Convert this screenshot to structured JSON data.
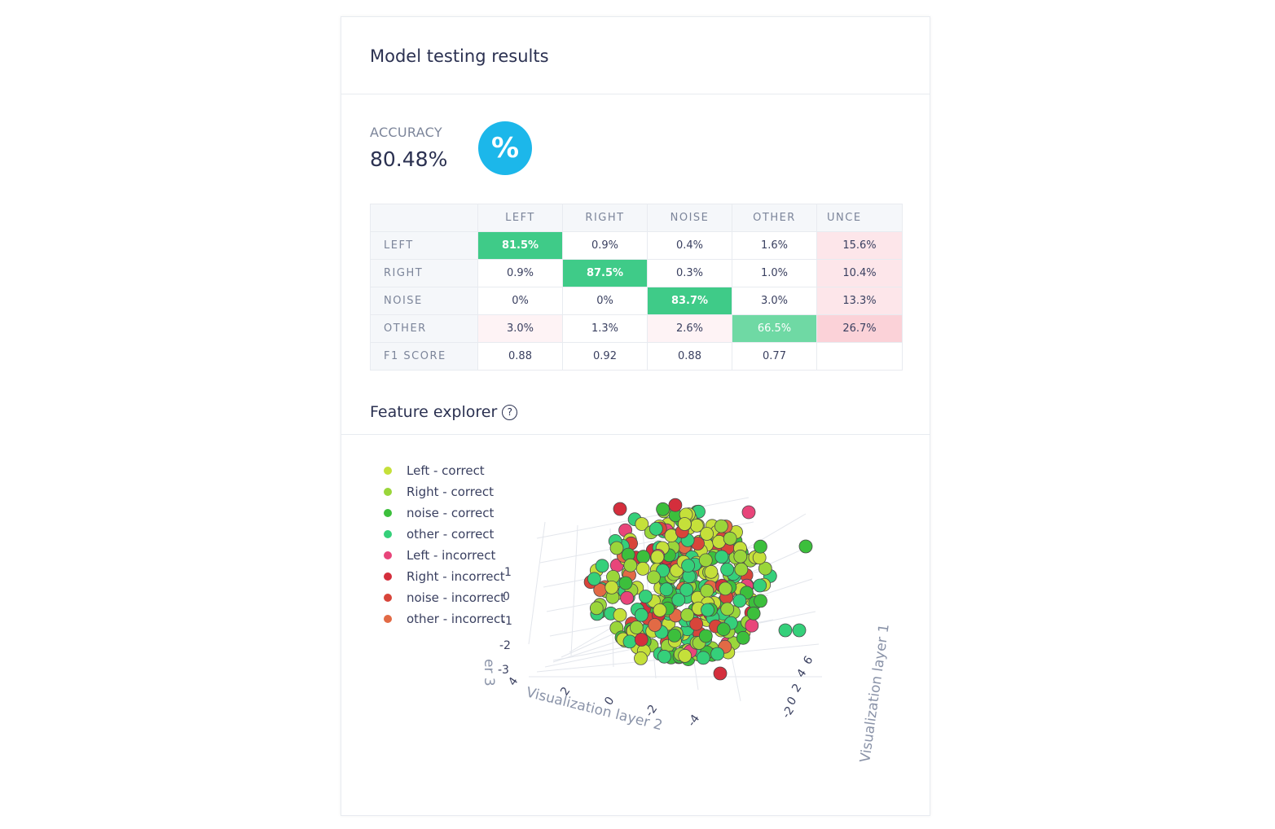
{
  "title": "Model testing results",
  "accuracy": {
    "label": "ACCURACY",
    "value": "80.48%",
    "icon": "percent-icon",
    "icon_glyph": "%"
  },
  "confusion_matrix": {
    "columns": [
      "LEFT",
      "RIGHT",
      "NOISE",
      "OTHER",
      "UNCE"
    ],
    "rows": [
      {
        "label": "LEFT",
        "cells": [
          "81.5%",
          "0.9%",
          "0.4%",
          "1.6%",
          "15.6%"
        ]
      },
      {
        "label": "RIGHT",
        "cells": [
          "0.9%",
          "87.5%",
          "0.3%",
          "1.0%",
          "10.4%"
        ]
      },
      {
        "label": "NOISE",
        "cells": [
          "0%",
          "0%",
          "83.7%",
          "3.0%",
          "13.3%"
        ]
      },
      {
        "label": "OTHER",
        "cells": [
          "3.0%",
          "1.3%",
          "2.6%",
          "66.5%",
          "26.7%"
        ]
      },
      {
        "label": "F1 SCORE",
        "cells": [
          "0.88",
          "0.92",
          "0.88",
          "0.77",
          ""
        ]
      }
    ]
  },
  "feature_explorer": {
    "title": "Feature explorer",
    "help_icon": "help-circle-icon",
    "help_glyph": "?",
    "legend": [
      {
        "label": "Left - correct",
        "color": "#c5e03a"
      },
      {
        "label": "Right - correct",
        "color": "#9ad63a"
      },
      {
        "label": "noise - correct",
        "color": "#3cbf3c"
      },
      {
        "label": "other - correct",
        "color": "#35d07a"
      },
      {
        "label": "Left - incorrect",
        "color": "#e8457a"
      },
      {
        "label": "Right - incorrect",
        "color": "#d42e3c"
      },
      {
        "label": "noise - incorrect",
        "color": "#d8453a"
      },
      {
        "label": "other - incorrect",
        "color": "#e26a45"
      }
    ],
    "axes": {
      "x_label": "Visualization layer 2",
      "y_label": "Visualization layer 1",
      "z_label": "er 3",
      "x_ticks": [
        "4",
        "2",
        "0",
        "-2",
        "-4"
      ],
      "y_ticks": [
        "6",
        "4",
        "2",
        "0",
        "-2"
      ],
      "z_ticks": [
        "1",
        "0",
        "-1",
        "-2",
        "-3"
      ]
    }
  },
  "cell_colors": {
    "red_strong": "#fbd2d8",
    "red_light": "#fde6ea",
    "red_faint": "#fef3f5",
    "green_strong": "#3fcb88",
    "green_light": "#6fd9a4"
  }
}
